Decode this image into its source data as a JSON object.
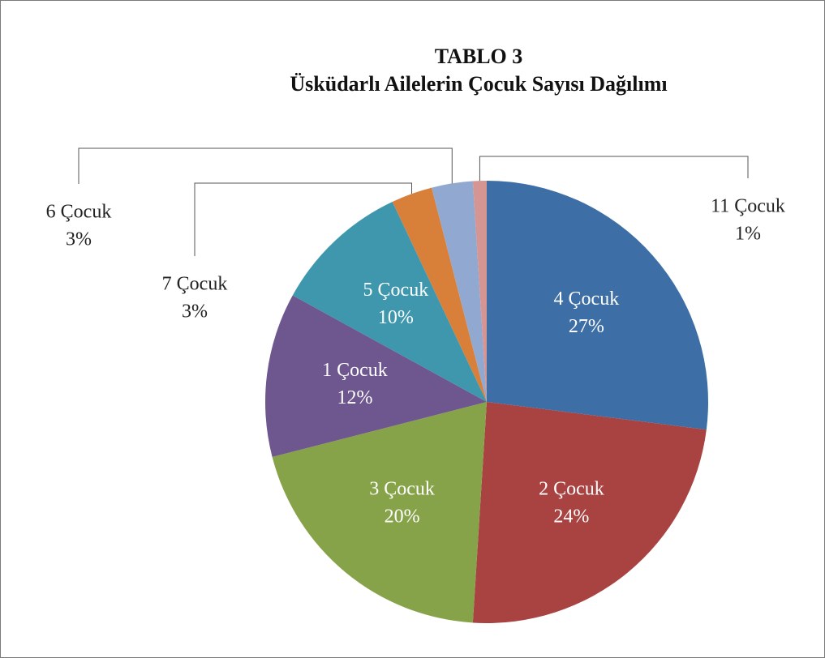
{
  "chart_data": {
    "type": "pie",
    "title": "TABLO 3",
    "subtitle": "Üsküdarlı Ailelerin Çocuk Sayısı Dağılımı",
    "categories": [
      "4 Çocuk",
      "2 Çocuk",
      "3 Çocuk",
      "1 Çocuk",
      "5 Çocuk",
      "7 Çocuk",
      "6 Çocuk",
      "11 Çocuk"
    ],
    "values": [
      27,
      24,
      20,
      12,
      10,
      3,
      3,
      1
    ],
    "value_labels": [
      "27%",
      "24%",
      "20%",
      "12%",
      "10%",
      "3%",
      "3%",
      "1%"
    ],
    "colors": [
      "#3d6fa6",
      "#a84342",
      "#87a34a",
      "#6e568e",
      "#3e97ad",
      "#d8803a",
      "#91a9d0",
      "#d59593"
    ]
  }
}
